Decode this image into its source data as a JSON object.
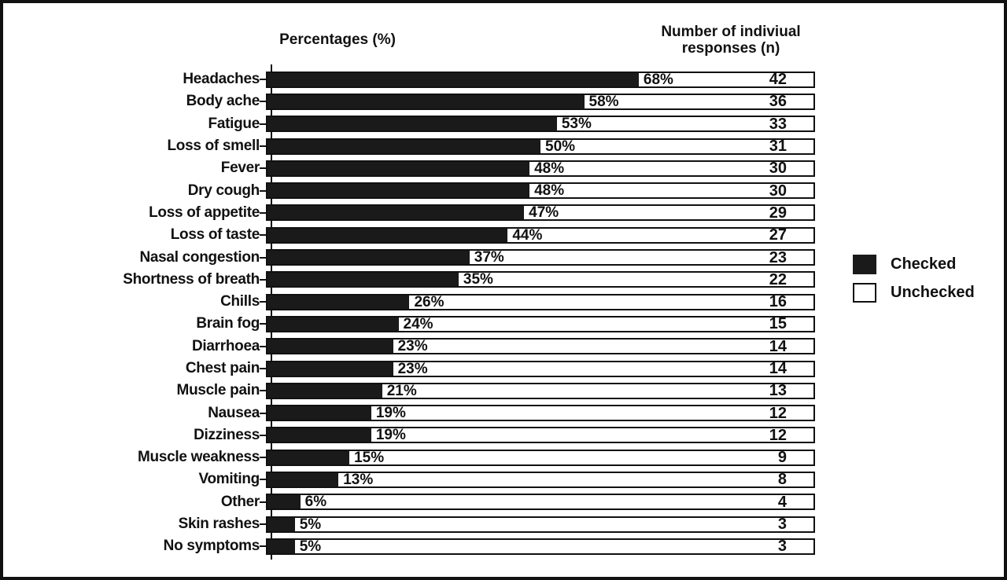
{
  "figure": {
    "left_header": "Percentages (%)",
    "right_header": "Number of indiviual responses (n)",
    "legend": {
      "checked_label": "Checked",
      "unchecked_label": "Unchecked",
      "checked_color": "#1a1a1a",
      "unchecked_color": "#ffffff"
    }
  },
  "chart_data": {
    "type": "bar",
    "orientation": "horizontal",
    "stacked": true,
    "title": "Percentages (%)",
    "xlabel": "Percentages (%)",
    "ylabel": "",
    "xlim": [
      0,
      100
    ],
    "grid": false,
    "legend_position": "right",
    "legend_entries": [
      "Checked",
      "Unchecked"
    ],
    "right_column_header": "Number of indiviual responses (n)",
    "categories": [
      "Headaches",
      "Body ache",
      "Fatigue",
      "Loss of smell",
      "Fever",
      "Dry cough",
      "Loss of appetite",
      "Loss of taste",
      "Nasal congestion",
      "Shortness of breath",
      "Chills",
      "Brain fog",
      "Diarrhoea",
      "Chest pain",
      "Muscle pain",
      "Nausea",
      "Dizziness",
      "Muscle weakness",
      "Vomiting",
      "Other",
      "Skin rashes",
      "No symptoms"
    ],
    "series": [
      {
        "name": "Checked",
        "color": "#1a1a1a",
        "values_percent": [
          68,
          58,
          53,
          50,
          48,
          48,
          47,
          44,
          37,
          35,
          26,
          24,
          23,
          23,
          21,
          19,
          19,
          15,
          13,
          6,
          5,
          5
        ]
      },
      {
        "name": "Unchecked",
        "color": "#ffffff",
        "values_percent": [
          32,
          42,
          47,
          50,
          52,
          52,
          53,
          56,
          63,
          65,
          74,
          76,
          77,
          77,
          79,
          81,
          81,
          85,
          87,
          94,
          95,
          95
        ]
      }
    ],
    "rows": [
      {
        "label": "Headaches",
        "percent": 68,
        "percent_label": "68%",
        "n": "42"
      },
      {
        "label": "Body ache",
        "percent": 58,
        "percent_label": "58%",
        "n": "36"
      },
      {
        "label": "Fatigue",
        "percent": 53,
        "percent_label": "53%",
        "n": "33"
      },
      {
        "label": "Loss of smell",
        "percent": 50,
        "percent_label": "50%",
        "n": "31"
      },
      {
        "label": "Fever",
        "percent": 48,
        "percent_label": "48%",
        "n": "30"
      },
      {
        "label": "Dry cough",
        "percent": 48,
        "percent_label": "48%",
        "n": "30"
      },
      {
        "label": "Loss of appetite",
        "percent": 47,
        "percent_label": "47%",
        "n": "29"
      },
      {
        "label": "Loss of taste",
        "percent": 44,
        "percent_label": "44%",
        "n": "27"
      },
      {
        "label": "Nasal congestion",
        "percent": 37,
        "percent_label": "37%",
        "n": "23"
      },
      {
        "label": "Shortness of breath",
        "percent": 35,
        "percent_label": "35%",
        "n": "22"
      },
      {
        "label": "Chills",
        "percent": 26,
        "percent_label": "26%",
        "n": "16"
      },
      {
        "label": "Brain fog",
        "percent": 24,
        "percent_label": "24%",
        "n": "15"
      },
      {
        "label": "Diarrhoea",
        "percent": 23,
        "percent_label": "23%",
        "n": "14"
      },
      {
        "label": "Chest pain",
        "percent": 23,
        "percent_label": "23%",
        "n": "14"
      },
      {
        "label": "Muscle pain",
        "percent": 21,
        "percent_label": "21%",
        "n": "13"
      },
      {
        "label": "Nausea",
        "percent": 19,
        "percent_label": "19%",
        "n": "12"
      },
      {
        "label": "Dizziness",
        "percent": 19,
        "percent_label": "19%",
        "n": "12"
      },
      {
        "label": "Muscle weakness",
        "percent": 15,
        "percent_label": "15%",
        "n": "9"
      },
      {
        "label": "Vomiting",
        "percent": 13,
        "percent_label": "13%",
        "n": "8"
      },
      {
        "label": "Other",
        "percent": 6,
        "percent_label": "6%",
        "n": "4"
      },
      {
        "label": "Skin rashes",
        "percent": 5,
        "percent_label": "5%",
        "n": "3"
      },
      {
        "label": "No symptoms",
        "percent": 5,
        "percent_label": "5%",
        "n": "3"
      }
    ]
  }
}
